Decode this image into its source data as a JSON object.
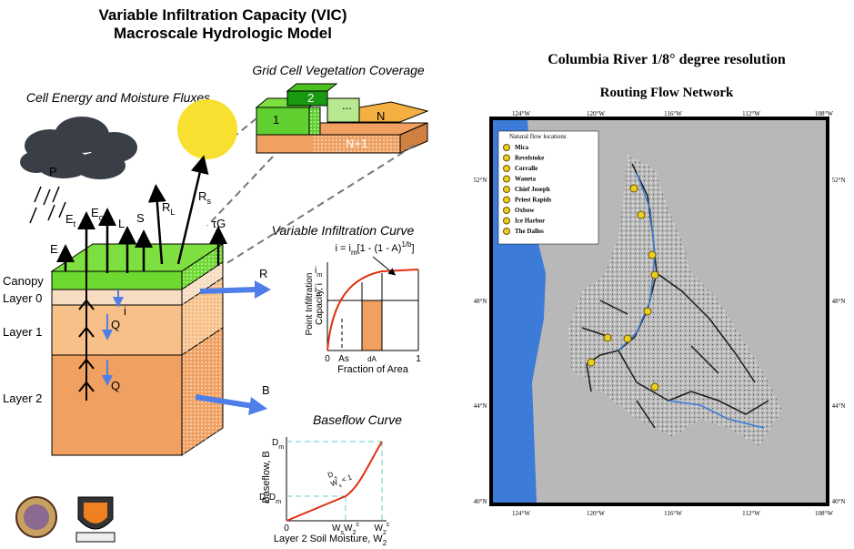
{
  "title": [
    "Variable Infiltration Capacity (VIC)",
    "Macroscale Hydrologic Model"
  ],
  "left": {
    "veg_title": "Grid Cell Vegetation Coverage",
    "flux_title": "Cell Energy and Moisture Fluxes",
    "tiles": [
      "1",
      "2",
      "...",
      "N",
      "N+1"
    ],
    "fluxes": [
      [
        "P"
      ],
      [
        "E",
        {
          "sub": "t"
        }
      ],
      [
        "E",
        {
          "sub": "c"
        }
      ],
      [
        "E"
      ],
      [
        "L"
      ],
      [
        "S"
      ],
      [
        "R",
        {
          "sub": "L"
        }
      ],
      [
        "R",
        {
          "sub": "s"
        }
      ],
      [
        "τG"
      ]
    ],
    "layers": [
      "Canopy",
      "Layer 0",
      "Layer 1",
      "Layer 2"
    ],
    "soil_labels": [
      "i",
      "Q",
      "Q"
    ],
    "runoff": "R",
    "baseflow": "B"
  },
  "infiltration": {
    "title": "Variable Infiltration Curve",
    "formula": [
      "i = i",
      {
        "sub": "m"
      },
      "[1 - (1 - A)",
      {
        "sup": "1/b"
      },
      "]"
    ],
    "y_label": [
      "Point Infiltration",
      "Capacity, i"
    ],
    "x_label": "Fraction of Area",
    "x_ticks": [
      "0",
      "As",
      "dA",
      "1"
    ],
    "y_ticks": [
      [
        "i",
        {
          "sub": "m"
        }
      ],
      [
        "i",
        {
          "sub": "o"
        }
      ]
    ]
  },
  "baseflow_curve": {
    "title": "Baseflow Curve",
    "y_label": "Baseflow, B",
    "x_label": [
      "Layer 2 Soil Moisture, W",
      {
        "sub": "2"
      }
    ],
    "y_ticks": [
      [
        "D",
        {
          "sub": "m"
        }
      ],
      [
        "D",
        {
          "sub": "s"
        },
        "D",
        {
          "sub": "m"
        }
      ]
    ],
    "x_ticks": [
      [
        "0"
      ],
      [
        "W",
        {
          "sub": "s"
        },
        "W",
        {
          "sub": "2"
        },
        {
          "sup": "c"
        }
      ],
      [
        "W",
        {
          "sub": "2"
        },
        {
          "sup": "c"
        }
      ]
    ],
    "annotation": [
      [
        "D",
        {
          "sub": "s"
        }
      ],
      [
        "W",
        {
          "sub": "s"
        },
        " < 1"
      ]
    ]
  },
  "map": {
    "title": "Columbia River 1/8° degree resolution",
    "subtitle": "Routing Flow Network",
    "lon_labels": [
      "124°W",
      "120°W",
      "116°W",
      "112°W",
      "108°W"
    ],
    "lat_labels": [
      "52°N",
      "48°N",
      "44°N",
      "40°N"
    ],
    "legend_title": "Natural flow locations",
    "stations": [
      "Mica",
      "Revelstoke",
      "Corralle",
      "Waneta",
      "Chief Joseph",
      "Priest Rapids",
      "Oxbow",
      "Ice Harbor",
      "The Dalles"
    ]
  }
}
